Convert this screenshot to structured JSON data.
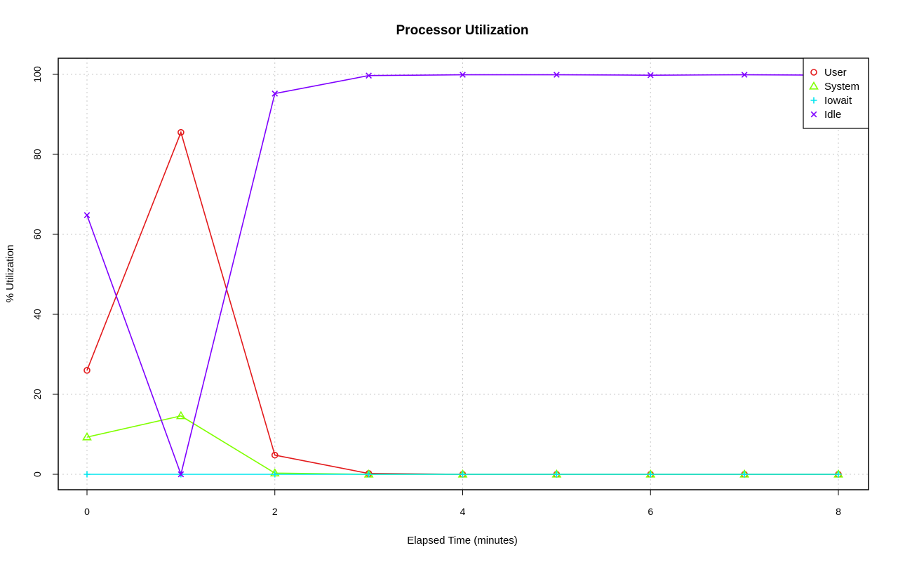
{
  "chart_data": {
    "type": "line",
    "title": "Processor Utilization",
    "xlabel": "Elapsed Time (minutes)",
    "ylabel": "% Utilization",
    "xlim": [
      0,
      8
    ],
    "ylim": [
      0,
      100
    ],
    "x_ticks": [
      "0",
      "2",
      "4",
      "6",
      "8"
    ],
    "y_ticks": [
      "0",
      "20",
      "40",
      "60",
      "80",
      "100"
    ],
    "grid": true,
    "legend_position": "top-right",
    "x": [
      0,
      1,
      2,
      3,
      4,
      5,
      6,
      7,
      8
    ],
    "series": [
      {
        "name": "User",
        "color": "#e31a1c",
        "marker": "circle",
        "values": [
          26,
          85.5,
          4.8,
          0.2,
          0,
          0,
          0,
          0,
          0
        ]
      },
      {
        "name": "System",
        "color": "#80ff00",
        "marker": "triangle",
        "values": [
          9.3,
          14.6,
          0.3,
          0,
          0,
          0,
          0,
          0,
          0
        ]
      },
      {
        "name": "Iowait",
        "color": "#00e5ee",
        "marker": "plus",
        "values": [
          0,
          0,
          0,
          0,
          0,
          0,
          0,
          0,
          0
        ]
      },
      {
        "name": "Idle",
        "color": "#7f00ff",
        "marker": "cross",
        "values": [
          64.8,
          0,
          95.2,
          99.7,
          99.9,
          99.9,
          99.8,
          99.9,
          99.8
        ]
      }
    ]
  }
}
